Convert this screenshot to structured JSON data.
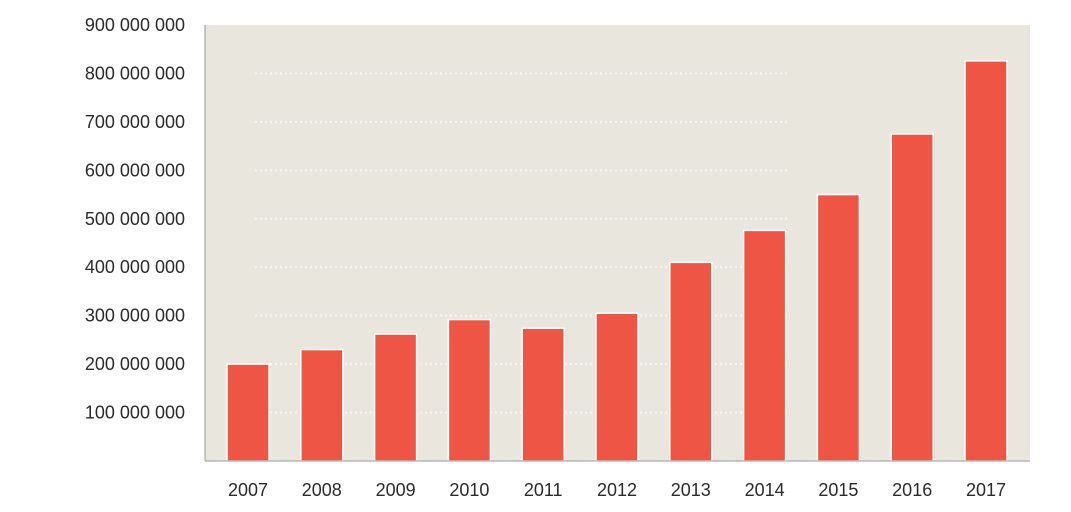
{
  "chart_data": {
    "type": "bar",
    "title": "",
    "xlabel": "",
    "ylabel": "",
    "categories": [
      "2007",
      "2008",
      "2009",
      "2010",
      "2011",
      "2012",
      "2013",
      "2014",
      "2015",
      "2016",
      "2017"
    ],
    "values": [
      200000000,
      230000000,
      262000000,
      292000000,
      274000000,
      305000000,
      410000000,
      476000000,
      550000000,
      675000000,
      826000000
    ],
    "ylim": [
      0,
      900000000
    ],
    "y_ticks": [
      {
        "value": 100000000,
        "label": "100 000 000"
      },
      {
        "value": 200000000,
        "label": "200 000 000"
      },
      {
        "value": 300000000,
        "label": "300 000 000"
      },
      {
        "value": 400000000,
        "label": "400 000 000"
      },
      {
        "value": 500000000,
        "label": "500 000 000"
      },
      {
        "value": 600000000,
        "label": "600 000 000"
      },
      {
        "value": 700000000,
        "label": "700 000 000"
      },
      {
        "value": 800000000,
        "label": "800 000 000"
      },
      {
        "value": 900000000,
        "label": "900 000 000"
      }
    ],
    "grid": "faint dotted",
    "legend": "none",
    "colors": {
      "bar": "#ef5544",
      "plot_background": "#e9e6de",
      "axis_text": "#2b2b2b",
      "axis_line": "#9a9a9a"
    }
  }
}
